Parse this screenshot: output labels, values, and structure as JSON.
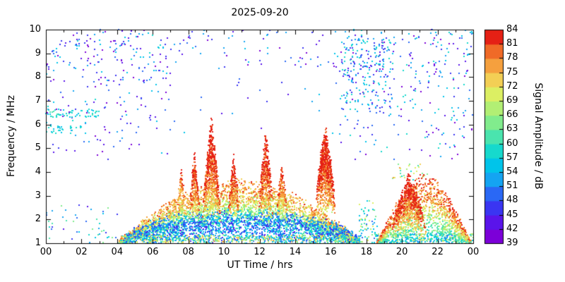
{
  "chart_data": {
    "type": "heatmap",
    "title": "2025-09-20",
    "xlabel": "UT Time / hrs",
    "ylabel": "Frequency / MHz",
    "zlabel": "Signal Amplitude / dB",
    "xlim": [
      0,
      24
    ],
    "ylim": [
      1,
      10
    ],
    "zlim": [
      39,
      84
    ],
    "x_tick_labels": [
      "00",
      "02",
      "04",
      "06",
      "08",
      "10",
      "12",
      "14",
      "16",
      "18",
      "20",
      "22",
      "00"
    ],
    "x_tick_values": [
      0,
      2,
      4,
      6,
      8,
      10,
      12,
      14,
      16,
      18,
      20,
      22,
      24
    ],
    "y_tick_labels": [
      "1",
      "2",
      "3",
      "4",
      "5",
      "6",
      "7",
      "8",
      "9",
      "10"
    ],
    "y_tick_values": [
      1,
      2,
      3,
      4,
      5,
      6,
      7,
      8,
      9,
      10
    ],
    "z_tick_labels": [
      "39",
      "42",
      "45",
      "48",
      "51",
      "54",
      "57",
      "60",
      "63",
      "66",
      "69",
      "72",
      "75",
      "78",
      "81",
      "84"
    ],
    "z_tick_values": [
      39,
      42,
      45,
      48,
      51,
      54,
      57,
      60,
      63,
      66,
      69,
      72,
      75,
      78,
      81,
      84
    ],
    "colorbar_colors": [
      "#7c00d8",
      "#5a14ea",
      "#3a35f2",
      "#2a68f5",
      "#14a4f2",
      "#00c4ea",
      "#16d9cd",
      "#4ae4ae",
      "#81ec8d",
      "#b2ef74",
      "#dcef63",
      "#f3cf55",
      "#f5a03e",
      "#f06a27",
      "#e52015"
    ],
    "grid": false,
    "legend_position": "right-colorbar",
    "seed": 20250920,
    "regions": [
      {
        "name": "scatter-high-left",
        "shape": "uniform",
        "t": [
          0,
          7
        ],
        "f": [
          4.4,
          10
        ],
        "n": 270,
        "amp": [
          39,
          58
        ],
        "fbias": 1.7
      },
      {
        "name": "scatter-high-right",
        "shape": "uniform",
        "t": [
          16.5,
          24
        ],
        "f": [
          4.4,
          10
        ],
        "n": 310,
        "amp": [
          39,
          60
        ],
        "fbias": 1.5
      },
      {
        "name": "scatter-top-mid",
        "shape": "uniform",
        "t": [
          7,
          16.5
        ],
        "f": [
          8.4,
          10
        ],
        "n": 70,
        "amp": [
          40,
          56
        ],
        "fbias": 1
      },
      {
        "name": "scatter-upper-mid",
        "shape": "uniform",
        "t": [
          7,
          16.5
        ],
        "f": [
          5.6,
          8.4
        ],
        "n": 22,
        "amp": [
          42,
          56
        ],
        "fbias": 1
      },
      {
        "name": "streak-6p5-mhz",
        "shape": "uniform",
        "t": [
          0,
          3
        ],
        "f": [
          6.3,
          6.65
        ],
        "n": 55,
        "amp": [
          54,
          61
        ],
        "fbias": 1
      },
      {
        "name": "streak-5p8-mhz",
        "shape": "uniform",
        "t": [
          0,
          2.1
        ],
        "f": [
          5.6,
          5.95
        ],
        "n": 30,
        "amp": [
          53,
          60
        ],
        "fbias": 1
      },
      {
        "name": "cluster-right-cyan",
        "shape": "uniform",
        "t": [
          16.6,
          19.4
        ],
        "f": [
          6.6,
          9.7
        ],
        "n": 160,
        "amp": [
          44,
          60
        ],
        "fbias": 1.2
      },
      {
        "name": "scatter-low-left",
        "shape": "uniform",
        "t": [
          0,
          4.2
        ],
        "f": [
          1.0,
          2.6
        ],
        "n": 45,
        "amp": [
          44,
          66
        ],
        "fbias": 1
      },
      {
        "name": "gap-evening",
        "shape": "uniform",
        "t": [
          17.6,
          18.7
        ],
        "f": [
          1.0,
          2.8
        ],
        "n": 70,
        "amp": [
          48,
          70
        ],
        "fbias": 1
      },
      {
        "name": "outliers-evening-top",
        "shape": "uniform",
        "t": [
          19.4,
          21.6
        ],
        "f": [
          3.6,
          4.4
        ],
        "n": 28,
        "amp": [
          58,
          78
        ],
        "fbias": 1
      },
      {
        "name": "main-day-arc",
        "shape": "arc",
        "t": [
          4.1,
          17.6
        ],
        "peak": 3.35,
        "power": 0.9,
        "n": 3900,
        "amp": [
          48,
          78
        ],
        "fbias": 0.6
      },
      {
        "name": "blue-2mhz-band",
        "shape": "arc",
        "t": [
          4.3,
          17.6
        ],
        "peak": 2.25,
        "power": 0.5,
        "n": 1150,
        "amp": [
          44,
          52
        ],
        "fbias": 0.35
      },
      {
        "name": "bottom-band-day",
        "shape": "uniform",
        "t": [
          4.2,
          17.7
        ],
        "f": [
          1.0,
          1.35
        ],
        "n": 650,
        "amp": [
          50,
          76
        ],
        "fbias": 1
      },
      {
        "name": "bottom-band-evening",
        "shape": "uniform",
        "t": [
          18.5,
          24
        ],
        "f": [
          1.0,
          1.4
        ],
        "n": 300,
        "amp": [
          48,
          72
        ],
        "fbias": 1
      },
      {
        "name": "spike-0740",
        "shape": "spike",
        "tc": 7.6,
        "hw": 0.25,
        "peak": 4.0,
        "n": 110,
        "amp": [
          62,
          80
        ]
      },
      {
        "name": "spike-0830",
        "shape": "spike",
        "tc": 8.35,
        "hw": 0.3,
        "peak": 4.6,
        "n": 240,
        "amp": [
          64,
          84
        ]
      },
      {
        "name": "spike-0930",
        "shape": "spike",
        "tc": 9.3,
        "hw": 0.5,
        "peak": 5.85,
        "n": 650,
        "amp": [
          66,
          84
        ]
      },
      {
        "name": "spike-1035",
        "shape": "spike",
        "tc": 10.55,
        "hw": 0.3,
        "peak": 4.55,
        "n": 230,
        "amp": [
          64,
          84
        ]
      },
      {
        "name": "spike-1220",
        "shape": "spike",
        "tc": 12.35,
        "hw": 0.4,
        "peak": 5.4,
        "n": 420,
        "amp": [
          66,
          84
        ]
      },
      {
        "name": "spike-1315",
        "shape": "spike",
        "tc": 13.25,
        "hw": 0.3,
        "peak": 4.2,
        "n": 190,
        "amp": [
          62,
          82
        ]
      },
      {
        "name": "spike-1545",
        "shape": "spike",
        "tc": 15.7,
        "hw": 0.55,
        "peak": 5.55,
        "fbase": 2.2,
        "n": 900,
        "amp": [
          70,
          84
        ]
      },
      {
        "name": "evening-cluster",
        "shape": "arc",
        "t": [
          18.6,
          23.9
        ],
        "peak": 3.6,
        "power": 1.1,
        "n": 1500,
        "amp": [
          56,
          82
        ],
        "fbias": 0.7
      },
      {
        "name": "evening-red-core",
        "shape": "spike",
        "tc": 20.4,
        "hw": 1.0,
        "peak": 3.7,
        "fbase": 1.15,
        "n": 620,
        "amp": [
          64,
          84
        ]
      }
    ]
  }
}
